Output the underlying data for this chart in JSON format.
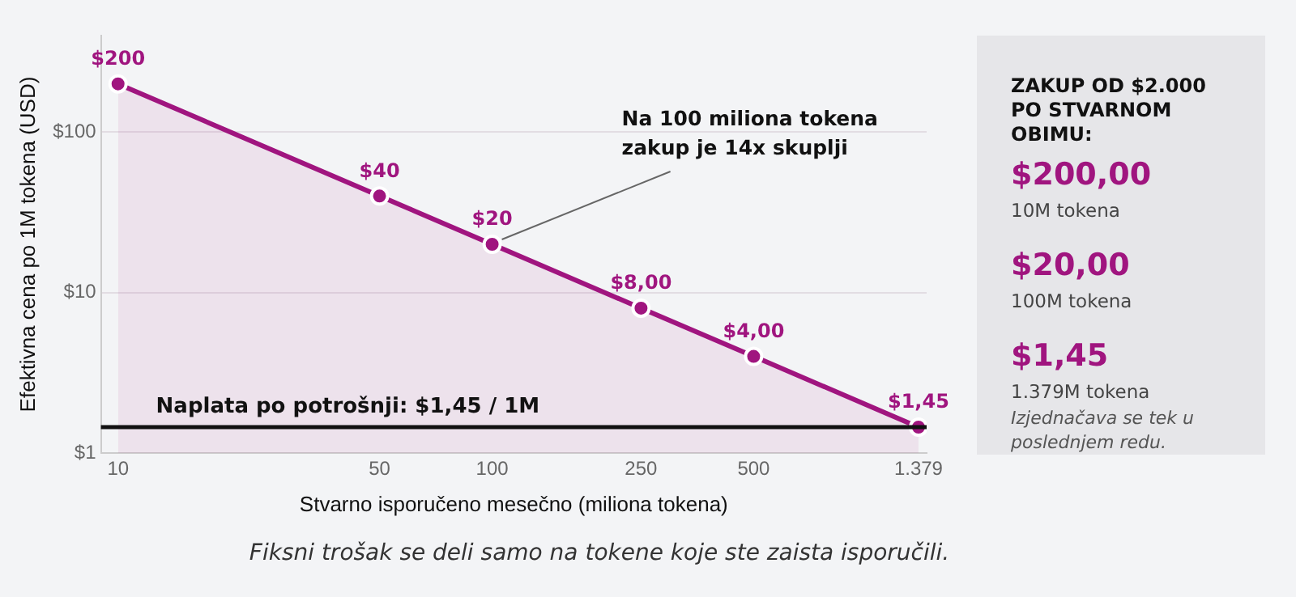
{
  "chart_data": [
    {
      "type": "area",
      "xlabel": "Stvarno isporučeno mesečno (miliona tokena)",
      "ylabel": "Efektivna cena po 1M tokena (USD)",
      "x": [
        10,
        50,
        100,
        250,
        500,
        1379
      ],
      "series": [
        {
          "color": "#a0157f",
          "values": [
            200,
            40,
            20,
            8,
            4,
            1.45
          ],
          "value_labels": [
            "$200",
            "$40",
            "$20",
            "$8,00",
            "$4,00",
            "$1,45"
          ]
        }
      ],
      "log": "xy",
      "xlim": [
        9,
        1450
      ],
      "ylim": [
        1,
        400
      ],
      "xticks": [
        10,
        50,
        100,
        250,
        500,
        {
          "value": 1379,
          "label": "1.379"
        }
      ],
      "yticks": [
        {
          "value": 1,
          "label": "$1"
        },
        {
          "value": 10,
          "label": "$10"
        },
        {
          "value": 100,
          "label": "$100"
        }
      ],
      "grid": "y",
      "legend": false,
      "marker": "circle",
      "ref_lines": [
        {
          "axis": "y",
          "value": 1.45,
          "label": "Naplata po potrošnji: $1,45 / 1M",
          "color": "#111111"
        }
      ],
      "annotations": [
        {
          "text": "Na 100 miliona tokena zakup je 14x skuplji",
          "x": 100,
          "y": 20
        },
        "Fiksni trošak se deli samo na tokene koje ste zaista isporučili."
      ]
    },
    {
      "type": "other",
      "title": "ZAKUP OD $2.000 PO STVARNOM OBIMU:",
      "annotations": [
        "$200,00",
        "10M tokena",
        "$20,00",
        "100M tokena",
        "$1,45",
        "1.379M tokena",
        "Izjednačava se tek u poslednjem redu."
      ]
    }
  ]
}
